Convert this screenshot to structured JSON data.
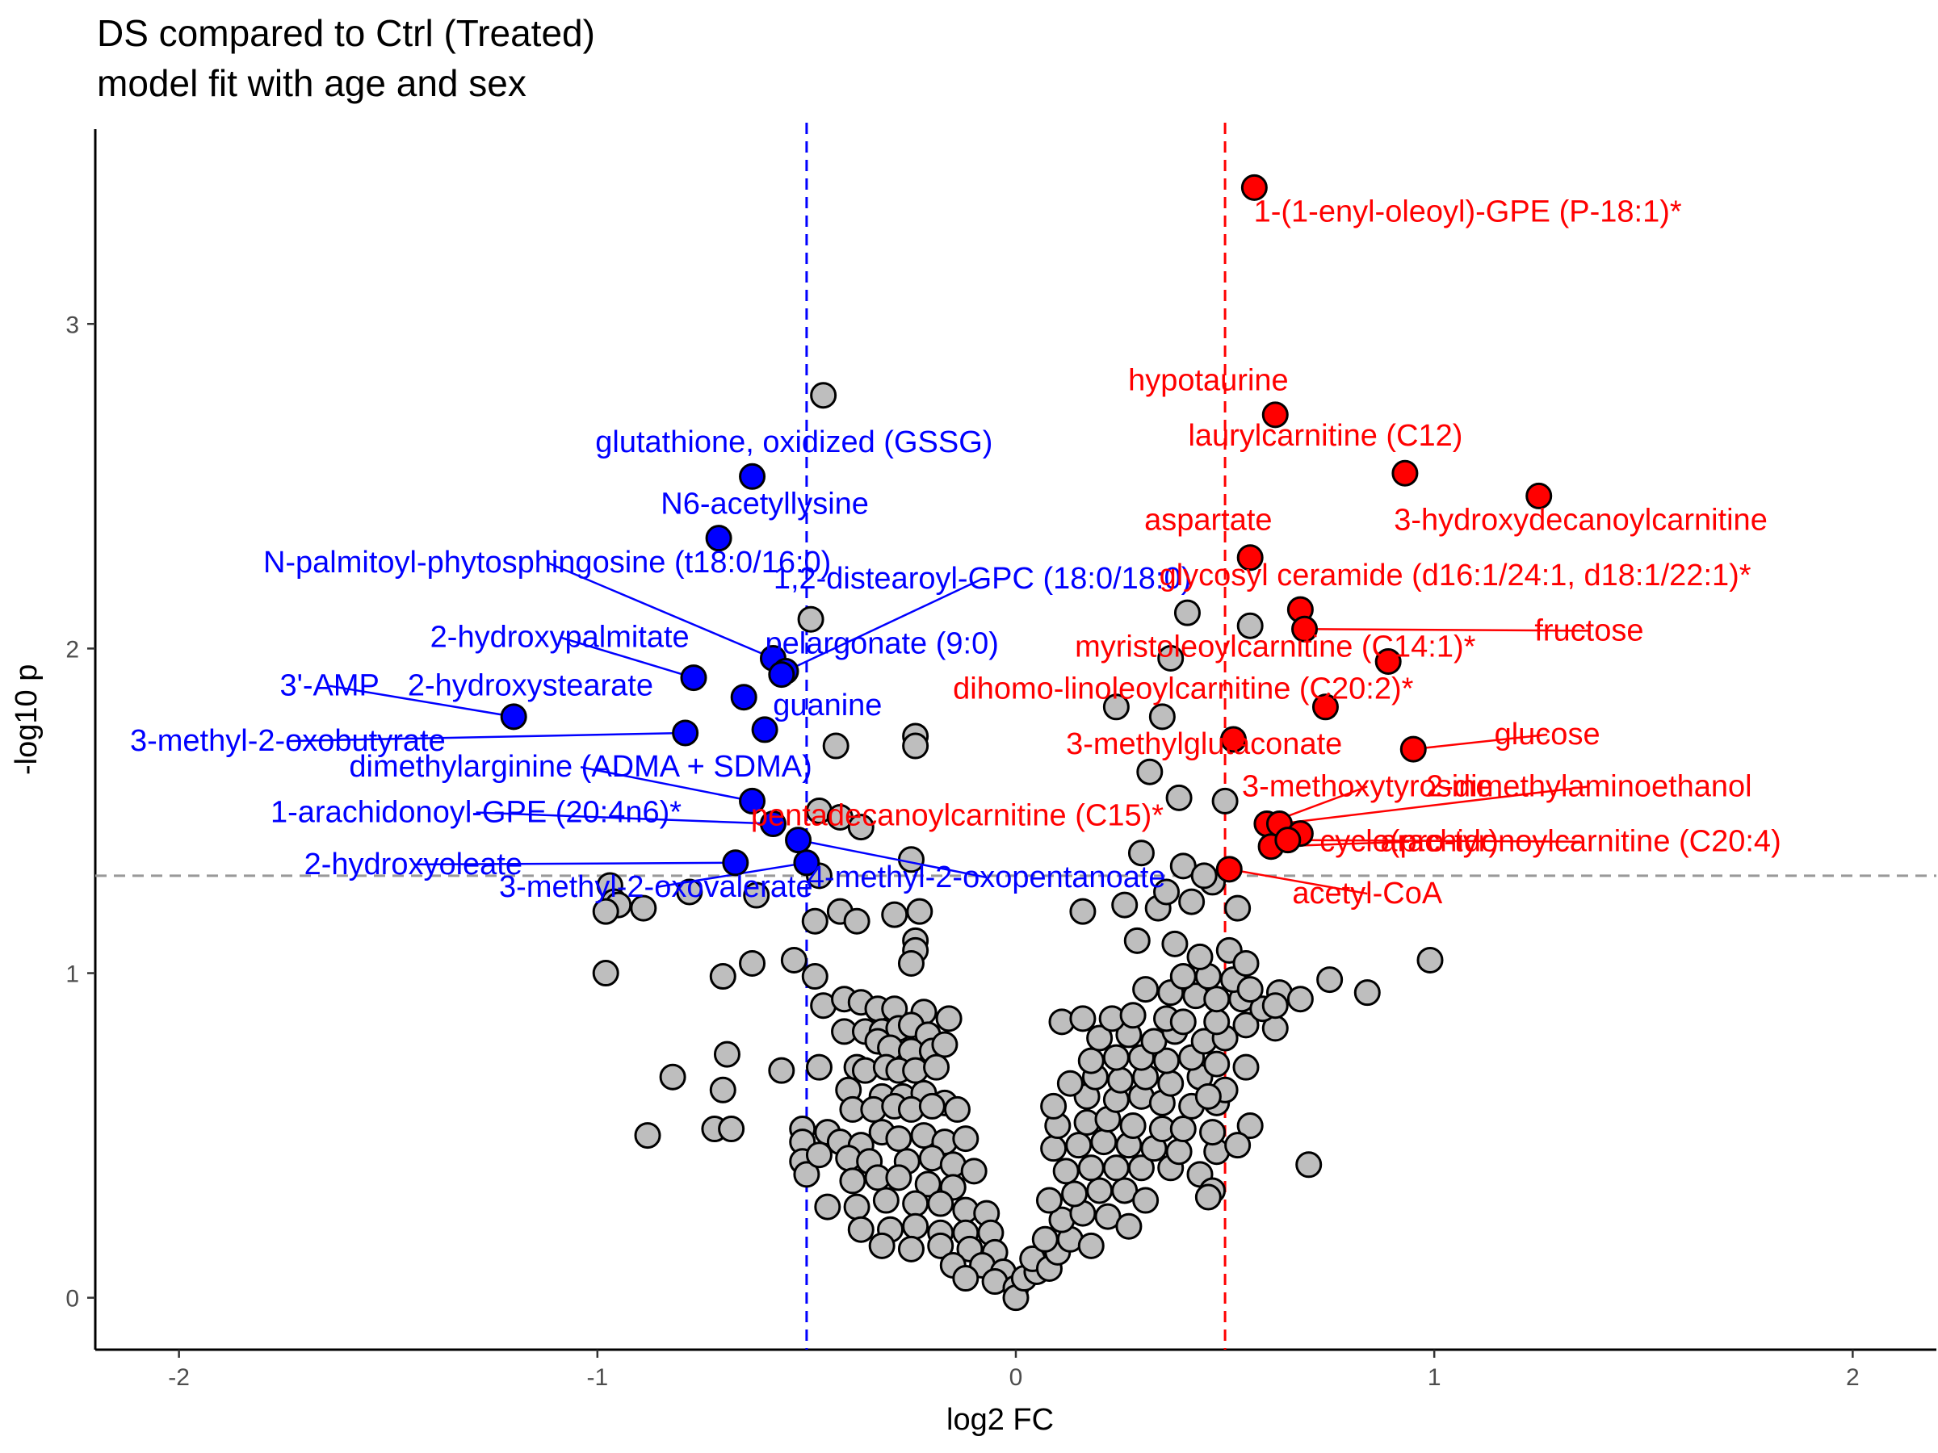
{
  "chart_data": {
    "type": "scatter",
    "title": "DS compared to Ctrl (Treated)",
    "subtitle": "model fit with age and sex",
    "xlabel": "log2 FC",
    "ylabel": "-log10 p",
    "xlim": [
      -2.2,
      2.2
    ],
    "ylim": [
      -0.16,
      3.6
    ],
    "x_ticks": [
      "-2",
      "-1",
      "0",
      "1",
      "2"
    ],
    "y_ticks": [
      "0",
      "1",
      "2",
      "3"
    ],
    "x_tick_values": [
      -2,
      -1,
      0,
      1,
      2
    ],
    "y_tick_values": [
      0,
      1,
      2,
      3
    ],
    "thresholds": {
      "fc_low": -0.5,
      "fc_high": 0.5,
      "p": 1.3
    },
    "grid": false,
    "colors": {
      "up": "#ff0000",
      "down": "#0000ff",
      "ns": "#bebebe",
      "stroke": "#000000",
      "pline": "#999999"
    },
    "significant_up": [
      {
        "label": "1-(1-enyl-oleoyl)-GPE (P-18:1)*",
        "x": 0.57,
        "y": 3.42,
        "lx": 1.08,
        "ly": 3.32,
        "line": false
      },
      {
        "label": "hypotaurine",
        "x": 0.62,
        "y": 2.72,
        "lx": 0.46,
        "ly": 2.8,
        "line": false
      },
      {
        "label": "laurylcarnitine (C12)",
        "x": 0.93,
        "y": 2.54,
        "lx": 0.74,
        "ly": 2.63,
        "line": false
      },
      {
        "label": "3-hydroxydecanoylcarnitine",
        "x": 1.25,
        "y": 2.47,
        "lx": 1.35,
        "ly": 2.37,
        "line": false
      },
      {
        "label": "aspartate",
        "x": 0.56,
        "y": 2.28,
        "lx": 0.46,
        "ly": 2.37,
        "line": false
      },
      {
        "label": "glycosyl ceramide (d16:1/24:1, d18:1/22:1)*",
        "x": 0.68,
        "y": 2.12,
        "lx": 1.05,
        "ly": 2.2,
        "line": false
      },
      {
        "label": "fructose",
        "x": 0.69,
        "y": 2.06,
        "lx": 1.37,
        "ly": 2.03,
        "line": true
      },
      {
        "label": "myristoleoylcarnitine (C14:1)*",
        "x": 0.89,
        "y": 1.96,
        "lx": 0.62,
        "ly": 1.98,
        "line": false
      },
      {
        "label": "dihomo-linoleoylcarnitine (C20:2)*",
        "x": 0.74,
        "y": 1.82,
        "lx": 0.4,
        "ly": 1.85,
        "line": false
      },
      {
        "label": "glucose",
        "x": 0.95,
        "y": 1.69,
        "lx": 1.27,
        "ly": 1.71,
        "line": true
      },
      {
        "label": "3-methylglutaconate",
        "x": 0.52,
        "y": 1.72,
        "lx": 0.45,
        "ly": 1.68,
        "line": false
      },
      {
        "label": "3-methoxytyrosine",
        "x": 0.6,
        "y": 1.46,
        "lx": 0.84,
        "ly": 1.55,
        "line": true
      },
      {
        "label": "2-dimethylaminoethanol",
        "x": 0.63,
        "y": 1.46,
        "lx": 1.37,
        "ly": 1.55,
        "line": true
      },
      {
        "label": "pentadecanoylcarnitine (C15)*",
        "x": 0.68,
        "y": 1.43,
        "lx": -0.14,
        "ly": 1.46,
        "line": false
      },
      {
        "label": "cyclo(pro-tyr)",
        "x": 0.61,
        "y": 1.39,
        "lx": 0.94,
        "ly": 1.38,
        "line": true
      },
      {
        "label": "arachidonoylcarnitine (C20:4)",
        "x": 0.65,
        "y": 1.41,
        "lx": 1.35,
        "ly": 1.38,
        "line": true
      },
      {
        "label": "acetyl-CoA",
        "x": 0.51,
        "y": 1.32,
        "lx": 0.84,
        "ly": 1.22,
        "line": true
      }
    ],
    "significant_down": [
      {
        "label": "glutathione, oxidized (GSSG)",
        "x": -0.63,
        "y": 2.53,
        "lx": -0.53,
        "ly": 2.61,
        "line": false
      },
      {
        "label": "N6-acetyllysine",
        "x": -0.71,
        "y": 2.34,
        "lx": -0.6,
        "ly": 2.42,
        "line": false
      },
      {
        "label": "N-palmitoyl-phytosphingosine (t18:0/16:0)",
        "x": -0.58,
        "y": 1.97,
        "lx": -1.12,
        "ly": 2.24,
        "line": true
      },
      {
        "label": "1,2-distearoyl-GPC (18:0/18:0)",
        "x": -0.55,
        "y": 1.93,
        "lx": -0.08,
        "ly": 2.19,
        "line": true
      },
      {
        "label": "2-hydroxypalmitate",
        "x": -0.77,
        "y": 1.91,
        "lx": -1.09,
        "ly": 2.01,
        "line": true
      },
      {
        "label": "pelargonate (9:0)",
        "x": -0.56,
        "y": 1.92,
        "lx": -0.32,
        "ly": 1.99,
        "line": false
      },
      {
        "label": "3'-AMP",
        "x": -1.2,
        "y": 1.79,
        "lx": -1.64,
        "ly": 1.86,
        "line": true
      },
      {
        "label": "2-hydroxystearate",
        "x": -0.65,
        "y": 1.85,
        "lx": -1.16,
        "ly": 1.86,
        "line": false
      },
      {
        "label": "guanine",
        "x": -0.6,
        "y": 1.75,
        "lx": -0.45,
        "ly": 1.8,
        "line": false
      },
      {
        "label": "3-methyl-2-oxobutyrate",
        "x": -0.79,
        "y": 1.74,
        "lx": -1.74,
        "ly": 1.69,
        "line": true
      },
      {
        "label": "dimethylarginine (ADMA + SDMA)",
        "x": -0.63,
        "y": 1.53,
        "lx": -1.04,
        "ly": 1.61,
        "line": true
      },
      {
        "label": "1-arachidonoyl-GPE (20:4n6)*",
        "x": -0.58,
        "y": 1.46,
        "lx": -1.29,
        "ly": 1.47,
        "line": true
      },
      {
        "label": "2-hydroxyoleate",
        "x": -0.67,
        "y": 1.34,
        "lx": -1.44,
        "ly": 1.31,
        "line": true
      },
      {
        "label": "3-methyl-2-oxovalerate",
        "x": -0.5,
        "y": 1.34,
        "lx": -0.86,
        "ly": 1.24,
        "line": true
      },
      {
        "label": "4-methyl-2-oxopentanoate",
        "x": -0.52,
        "y": 1.41,
        "lx": -0.07,
        "ly": 1.27,
        "line": true
      }
    ],
    "not_significant": [
      [
        -0.46,
        2.78
      ],
      [
        -0.49,
        2.09
      ],
      [
        -0.43,
        1.7
      ],
      [
        -0.24,
        1.73
      ],
      [
        -0.24,
        1.7
      ],
      [
        -0.47,
        1.5
      ],
      [
        -0.42,
        1.48
      ],
      [
        -0.37,
        1.45
      ],
      [
        -0.25,
        1.35
      ],
      [
        -0.47,
        1.3
      ],
      [
        -0.97,
        1.27
      ],
      [
        -0.96,
        1.22
      ],
      [
        -0.95,
        1.21
      ],
      [
        -0.98,
        1.19
      ],
      [
        -0.89,
        1.2
      ],
      [
        -0.78,
        1.25
      ],
      [
        -0.62,
        1.24
      ],
      [
        -0.48,
        1.16
      ],
      [
        -0.42,
        1.19
      ],
      [
        -0.38,
        1.16
      ],
      [
        -0.29,
        1.18
      ],
      [
        -0.23,
        1.19
      ],
      [
        -0.24,
        1.1
      ],
      [
        -0.24,
        1.07
      ],
      [
        -0.25,
        1.03
      ],
      [
        -0.63,
        1.03
      ],
      [
        -0.53,
        1.04
      ],
      [
        -0.98,
        1.0
      ],
      [
        -0.7,
        0.99
      ],
      [
        -0.48,
        0.99
      ],
      [
        -0.46,
        0.9
      ],
      [
        -0.41,
        0.92
      ],
      [
        -0.37,
        0.91
      ],
      [
        -0.33,
        0.89
      ],
      [
        -0.29,
        0.89
      ],
      [
        -0.22,
        0.88
      ],
      [
        -0.16,
        0.86
      ],
      [
        -0.41,
        0.82
      ],
      [
        -0.36,
        0.82
      ],
      [
        -0.32,
        0.82
      ],
      [
        -0.28,
        0.83
      ],
      [
        -0.25,
        0.84
      ],
      [
        -0.21,
        0.81
      ],
      [
        -0.33,
        0.79
      ],
      [
        -0.3,
        0.77
      ],
      [
        -0.25,
        0.76
      ],
      [
        -0.2,
        0.76
      ],
      [
        -0.17,
        0.78
      ],
      [
        -0.69,
        0.75
      ],
      [
        -0.82,
        0.68
      ],
      [
        -0.47,
        0.71
      ],
      [
        -0.38,
        0.71
      ],
      [
        -0.36,
        0.7
      ],
      [
        -0.31,
        0.71
      ],
      [
        -0.28,
        0.7
      ],
      [
        -0.24,
        0.7
      ],
      [
        -0.19,
        0.71
      ],
      [
        -0.7,
        0.64
      ],
      [
        -0.56,
        0.7
      ],
      [
        -0.4,
        0.64
      ],
      [
        -0.32,
        0.62
      ],
      [
        -0.27,
        0.62
      ],
      [
        -0.22,
        0.63
      ],
      [
        -0.17,
        0.6
      ],
      [
        -0.39,
        0.58
      ],
      [
        -0.34,
        0.58
      ],
      [
        -0.29,
        0.59
      ],
      [
        -0.25,
        0.58
      ],
      [
        -0.2,
        0.59
      ],
      [
        -0.14,
        0.58
      ],
      [
        -0.88,
        0.5
      ],
      [
        -0.72,
        0.52
      ],
      [
        -0.68,
        0.52
      ],
      [
        -0.51,
        0.52
      ],
      [
        -0.51,
        0.48
      ],
      [
        -0.45,
        0.51
      ],
      [
        -0.42,
        0.48
      ],
      [
        -0.37,
        0.47
      ],
      [
        -0.32,
        0.51
      ],
      [
        -0.28,
        0.49
      ],
      [
        -0.22,
        0.5
      ],
      [
        -0.17,
        0.48
      ],
      [
        -0.12,
        0.49
      ],
      [
        -0.51,
        0.42
      ],
      [
        -0.5,
        0.38
      ],
      [
        -0.47,
        0.44
      ],
      [
        -0.4,
        0.43
      ],
      [
        -0.35,
        0.42
      ],
      [
        -0.26,
        0.42
      ],
      [
        -0.2,
        0.43
      ],
      [
        -0.15,
        0.41
      ],
      [
        -0.1,
        0.39
      ],
      [
        -0.39,
        0.36
      ],
      [
        -0.33,
        0.37
      ],
      [
        -0.28,
        0.37
      ],
      [
        -0.21,
        0.35
      ],
      [
        -0.15,
        0.34
      ],
      [
        -0.45,
        0.28
      ],
      [
        -0.38,
        0.28
      ],
      [
        -0.31,
        0.3
      ],
      [
        -0.24,
        0.29
      ],
      [
        -0.18,
        0.29
      ],
      [
        -0.12,
        0.27
      ],
      [
        -0.07,
        0.26
      ],
      [
        -0.37,
        0.21
      ],
      [
        -0.3,
        0.21
      ],
      [
        -0.24,
        0.22
      ],
      [
        -0.18,
        0.2
      ],
      [
        -0.12,
        0.2
      ],
      [
        -0.06,
        0.2
      ],
      [
        -0.32,
        0.16
      ],
      [
        -0.25,
        0.15
      ],
      [
        -0.18,
        0.16
      ],
      [
        -0.11,
        0.15
      ],
      [
        -0.05,
        0.14
      ],
      [
        -0.15,
        0.1
      ],
      [
        -0.08,
        0.1
      ],
      [
        -0.03,
        0.08
      ],
      [
        -0.12,
        0.06
      ],
      [
        -0.05,
        0.05
      ],
      [
        0.0,
        0.03
      ],
      [
        0.0,
        0.0
      ],
      [
        0.02,
        0.06
      ],
      [
        0.05,
        0.08
      ],
      [
        0.04,
        0.12
      ],
      [
        0.08,
        0.09
      ],
      [
        0.1,
        0.14
      ],
      [
        0.07,
        0.18
      ],
      [
        0.13,
        0.18
      ],
      [
        0.18,
        0.16
      ],
      [
        0.11,
        0.24
      ],
      [
        0.16,
        0.26
      ],
      [
        0.22,
        0.25
      ],
      [
        0.27,
        0.22
      ],
      [
        0.08,
        0.3
      ],
      [
        0.14,
        0.32
      ],
      [
        0.2,
        0.33
      ],
      [
        0.26,
        0.33
      ],
      [
        0.31,
        0.3
      ],
      [
        0.12,
        0.39
      ],
      [
        0.18,
        0.4
      ],
      [
        0.24,
        0.4
      ],
      [
        0.3,
        0.4
      ],
      [
        0.37,
        0.4
      ],
      [
        0.44,
        0.38
      ],
      [
        0.47,
        0.33
      ],
      [
        0.09,
        0.46
      ],
      [
        0.15,
        0.47
      ],
      [
        0.21,
        0.48
      ],
      [
        0.27,
        0.47
      ],
      [
        0.33,
        0.46
      ],
      [
        0.39,
        0.45
      ],
      [
        0.48,
        0.45
      ],
      [
        0.1,
        0.53
      ],
      [
        0.17,
        0.54
      ],
      [
        0.22,
        0.55
      ],
      [
        0.28,
        0.53
      ],
      [
        0.35,
        0.52
      ],
      [
        0.4,
        0.52
      ],
      [
        0.47,
        0.51
      ],
      [
        0.56,
        0.53
      ],
      [
        0.09,
        0.59
      ],
      [
        0.17,
        0.62
      ],
      [
        0.24,
        0.61
      ],
      [
        0.3,
        0.62
      ],
      [
        0.35,
        0.6
      ],
      [
        0.42,
        0.59
      ],
      [
        0.48,
        0.6
      ],
      [
        0.13,
        0.66
      ],
      [
        0.19,
        0.68
      ],
      [
        0.25,
        0.67
      ],
      [
        0.31,
        0.68
      ],
      [
        0.37,
        0.66
      ],
      [
        0.44,
        0.68
      ],
      [
        0.5,
        0.64
      ],
      [
        0.46,
        0.62
      ],
      [
        0.18,
        0.73
      ],
      [
        0.24,
        0.74
      ],
      [
        0.3,
        0.74
      ],
      [
        0.36,
        0.73
      ],
      [
        0.42,
        0.74
      ],
      [
        0.48,
        0.72
      ],
      [
        0.55,
        0.71
      ],
      [
        0.11,
        0.85
      ],
      [
        0.2,
        0.8
      ],
      [
        0.27,
        0.81
      ],
      [
        0.33,
        0.79
      ],
      [
        0.38,
        0.82
      ],
      [
        0.45,
        0.79
      ],
      [
        0.5,
        0.8
      ],
      [
        0.16,
        0.86
      ],
      [
        0.23,
        0.86
      ],
      [
        0.28,
        0.87
      ],
      [
        0.36,
        0.86
      ],
      [
        0.4,
        0.85
      ],
      [
        0.48,
        0.85
      ],
      [
        0.55,
        0.84
      ],
      [
        0.62,
        0.83
      ],
      [
        0.31,
        0.95
      ],
      [
        0.37,
        0.94
      ],
      [
        0.43,
        0.93
      ],
      [
        0.48,
        0.92
      ],
      [
        0.54,
        0.92
      ],
      [
        0.59,
        0.89
      ],
      [
        0.63,
        0.94
      ],
      [
        0.68,
        0.92
      ],
      [
        0.75,
        0.98
      ],
      [
        0.84,
        0.94
      ],
      [
        0.4,
        0.99
      ],
      [
        0.46,
        0.99
      ],
      [
        0.52,
        0.98
      ],
      [
        0.56,
        0.95
      ],
      [
        0.62,
        0.9
      ],
      [
        0.29,
        1.1
      ],
      [
        0.38,
        1.09
      ],
      [
        0.44,
        1.05
      ],
      [
        0.51,
        1.07
      ],
      [
        0.55,
        1.03
      ],
      [
        0.16,
        1.19
      ],
      [
        0.26,
        1.21
      ],
      [
        0.34,
        1.2
      ],
      [
        0.42,
        1.22
      ],
      [
        0.53,
        1.2
      ],
      [
        0.36,
        1.25
      ],
      [
        0.47,
        1.28
      ],
      [
        0.3,
        1.37
      ],
      [
        0.4,
        1.33
      ],
      [
        0.45,
        1.3
      ],
      [
        0.39,
        1.54
      ],
      [
        0.5,
        1.53
      ],
      [
        0.32,
        1.62
      ],
      [
        0.24,
        1.82
      ],
      [
        0.35,
        1.79
      ],
      [
        0.41,
        2.11
      ],
      [
        0.56,
        2.07
      ],
      [
        0.37,
        1.97
      ],
      [
        0.7,
        0.41
      ],
      [
        0.53,
        0.47
      ],
      [
        0.46,
        0.31
      ],
      [
        0.99,
        1.04
      ]
    ]
  }
}
